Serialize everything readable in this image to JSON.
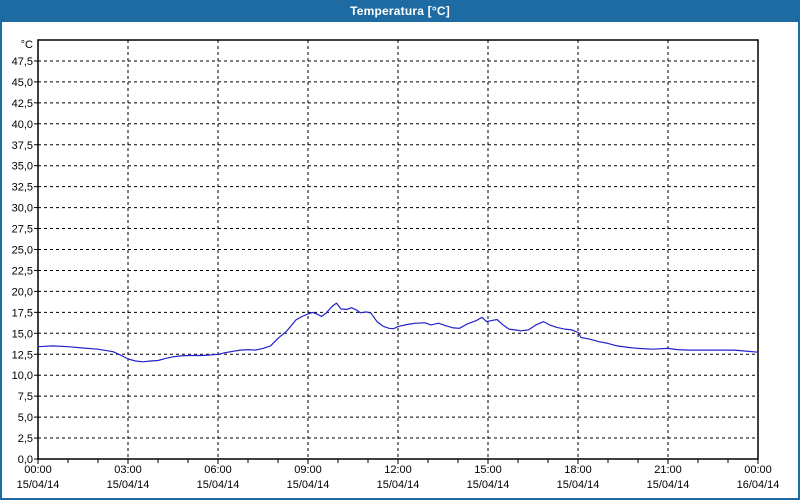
{
  "window": {
    "title": "Temperatura [°C]",
    "colors": {
      "titlebar": "#1e6ba3",
      "titlebar_text": "#ffffff",
      "border": "#1e6ba3",
      "background": "#ffffff"
    }
  },
  "chart_data": {
    "type": "line",
    "title": "Temperatura [°C]",
    "y_unit_label": "°C",
    "ylim": [
      0,
      50
    ],
    "xlim_hours": [
      0,
      24
    ],
    "y_tick_step": 2.5,
    "y_tick_labels": [
      "0,0",
      "2,5",
      "5,0",
      "7,5",
      "10,0",
      "12,5",
      "15,0",
      "17,5",
      "20,0",
      "22,5",
      "25,0",
      "27,5",
      "30,0",
      "32,5",
      "35,0",
      "37,5",
      "40,0",
      "42,5",
      "45,0",
      "47,5"
    ],
    "x_ticks": [
      {
        "hour": 0,
        "time": "00:00",
        "date": "15/04/14"
      },
      {
        "hour": 3,
        "time": "03:00",
        "date": "15/04/14"
      },
      {
        "hour": 6,
        "time": "06:00",
        "date": "15/04/14"
      },
      {
        "hour": 9,
        "time": "09:00",
        "date": "15/04/14"
      },
      {
        "hour": 12,
        "time": "12:00",
        "date": "15/04/14"
      },
      {
        "hour": 15,
        "time": "15:00",
        "date": "15/04/14"
      },
      {
        "hour": 18,
        "time": "18:00",
        "date": "15/04/14"
      },
      {
        "hour": 21,
        "time": "21:00",
        "date": "15/04/14"
      },
      {
        "hour": 24,
        "time": "00:00",
        "date": "16/04/14"
      }
    ],
    "minor_x_tick_interval_hours": 1,
    "grid": {
      "style": "dashed",
      "color": "#000000"
    },
    "plot_border_color": "#000000",
    "series": [
      {
        "name": "Temperatura",
        "color": "#2222cc",
        "points_hour_value": [
          [
            0,
            13.4
          ],
          [
            0.5,
            13.5
          ],
          [
            1,
            13.4
          ],
          [
            1.5,
            13.25
          ],
          [
            2,
            13.1
          ],
          [
            2.5,
            12.8
          ],
          [
            2.75,
            12.4
          ],
          [
            3,
            11.95
          ],
          [
            3.25,
            11.7
          ],
          [
            3.5,
            11.6
          ],
          [
            3.75,
            11.7
          ],
          [
            4,
            11.75
          ],
          [
            4.25,
            12.0
          ],
          [
            4.5,
            12.2
          ],
          [
            4.75,
            12.3
          ],
          [
            5,
            12.35
          ],
          [
            5.5,
            12.35
          ],
          [
            6,
            12.5
          ],
          [
            6.25,
            12.7
          ],
          [
            6.5,
            12.85
          ],
          [
            6.75,
            13.0
          ],
          [
            7,
            13.05
          ],
          [
            7.25,
            13.0
          ],
          [
            7.5,
            13.2
          ],
          [
            7.75,
            13.5
          ],
          [
            8,
            14.4
          ],
          [
            8.3,
            15.3
          ],
          [
            8.6,
            16.6
          ],
          [
            8.8,
            17.0
          ],
          [
            9,
            17.3
          ],
          [
            9.15,
            17.5
          ],
          [
            9.3,
            17.3
          ],
          [
            9.45,
            17.0
          ],
          [
            9.6,
            17.4
          ],
          [
            9.8,
            18.2
          ],
          [
            9.95,
            18.6
          ],
          [
            10.1,
            17.9
          ],
          [
            10.3,
            17.85
          ],
          [
            10.45,
            18.05
          ],
          [
            10.6,
            17.8
          ],
          [
            10.75,
            17.45
          ],
          [
            10.95,
            17.55
          ],
          [
            11.1,
            17.4
          ],
          [
            11.3,
            16.4
          ],
          [
            11.5,
            15.85
          ],
          [
            11.7,
            15.6
          ],
          [
            11.85,
            15.55
          ],
          [
            12,
            15.8
          ],
          [
            12.3,
            16.05
          ],
          [
            12.6,
            16.2
          ],
          [
            12.9,
            16.25
          ],
          [
            13.1,
            16.0
          ],
          [
            13.35,
            16.2
          ],
          [
            13.6,
            15.9
          ],
          [
            13.85,
            15.65
          ],
          [
            14.05,
            15.6
          ],
          [
            14.3,
            16.1
          ],
          [
            14.6,
            16.5
          ],
          [
            14.8,
            16.9
          ],
          [
            14.95,
            16.4
          ],
          [
            15.1,
            16.5
          ],
          [
            15.3,
            16.65
          ],
          [
            15.5,
            16.0
          ],
          [
            15.7,
            15.5
          ],
          [
            15.9,
            15.4
          ],
          [
            16.1,
            15.3
          ],
          [
            16.35,
            15.4
          ],
          [
            16.6,
            16.0
          ],
          [
            16.85,
            16.4
          ],
          [
            17.05,
            16.0
          ],
          [
            17.3,
            15.7
          ],
          [
            17.55,
            15.5
          ],
          [
            17.8,
            15.4
          ],
          [
            18,
            15.1
          ],
          [
            18.1,
            14.5
          ],
          [
            18.4,
            14.3
          ],
          [
            18.7,
            14.0
          ],
          [
            19,
            13.8
          ],
          [
            19.3,
            13.5
          ],
          [
            19.7,
            13.3
          ],
          [
            20,
            13.2
          ],
          [
            20.5,
            13.1
          ],
          [
            21,
            13.2
          ],
          [
            21.3,
            13.05
          ],
          [
            21.7,
            13.0
          ],
          [
            22.5,
            13.0
          ],
          [
            23.2,
            13.0
          ],
          [
            23.5,
            12.9
          ],
          [
            24,
            12.75
          ]
        ]
      }
    ]
  }
}
